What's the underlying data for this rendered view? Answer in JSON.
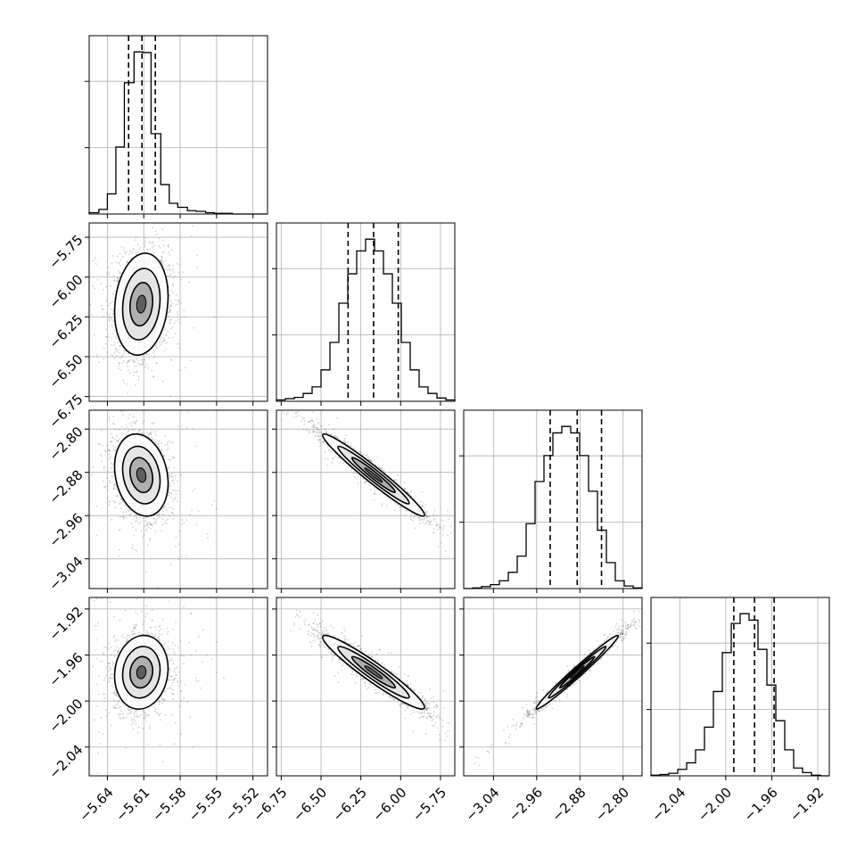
{
  "figure": {
    "background": "#ffffff",
    "line_color": "#000000",
    "grid_color": "#b0b0b0",
    "scatter_color": "#555555"
  },
  "chart_data": [
    {
      "type": "histogram",
      "panel": "1-1",
      "param": 0,
      "xlim": [
        -5.655,
        -5.508
      ],
      "bins": [
        -5.655,
        -5.647,
        -5.64,
        -5.633,
        -5.626,
        -5.618,
        -5.611,
        -5.604,
        -5.596,
        -5.589,
        -5.582,
        -5.574,
        -5.567,
        -5.559,
        -5.552,
        -5.545,
        -5.537,
        -5.53,
        -5.523,
        -5.515,
        -5.508
      ],
      "counts": [
        2,
        7,
        30,
        100,
        196,
        242,
        241,
        120,
        44,
        16,
        10,
        5,
        4,
        2,
        1,
        1,
        0,
        0,
        0,
        0
      ],
      "quantiles": [
        -5.6225,
        -5.6115,
        -5.6005
      ],
      "grid": true,
      "yticks_shown": false
    },
    {
      "type": "scatter_contour",
      "panel": "2-1",
      "x_param": 0,
      "y_param": 1,
      "xlim": [
        -5.655,
        -5.508
      ],
      "ylim": [
        -6.78,
        -5.66
      ],
      "yticks": [
        "−5.75",
        "−6.00",
        "−6.25",
        "−6.50",
        "−6.75"
      ],
      "ytick_values": [
        -5.75,
        -6.0,
        -6.25,
        -6.5,
        -6.75
      ],
      "center": [
        -5.612,
        -6.17
      ],
      "spread": [
        0.011,
        0.16
      ],
      "correlation": 0.15,
      "grid": true
    },
    {
      "type": "histogram",
      "panel": "2-2",
      "param": 1,
      "xlim": [
        -6.78,
        -5.66
      ],
      "bins": [
        -6.78,
        -6.724,
        -6.668,
        -6.612,
        -6.556,
        -6.5,
        -6.444,
        -6.388,
        -6.332,
        -6.276,
        -6.22,
        -6.164,
        -6.108,
        -6.052,
        -5.996,
        -5.94,
        -5.884,
        -5.828,
        -5.772,
        -5.716,
        -5.66
      ],
      "counts": [
        2,
        4,
        6,
        12,
        22,
        48,
        90,
        150,
        195,
        230,
        248,
        230,
        195,
        150,
        90,
        48,
        22,
        12,
        5,
        2
      ],
      "quantiles": [
        -6.33,
        -6.17,
        -6.015
      ],
      "grid": true,
      "yticks_shown": false
    },
    {
      "type": "scatter_contour",
      "panel": "3-1",
      "x_param": 0,
      "y_param": 2,
      "xlim": [
        -5.655,
        -5.508
      ],
      "ylim": [
        -3.095,
        -2.765
      ],
      "yticks": [
        "−2.80",
        "−2.88",
        "−2.96",
        "−3.04"
      ],
      "ytick_values": [
        -2.8,
        -2.88,
        -2.96,
        -3.04
      ],
      "center": [
        -5.612,
        -2.885
      ],
      "spread": [
        0.011,
        0.038
      ],
      "correlation": -0.2,
      "grid": true
    },
    {
      "type": "scatter_contour",
      "panel": "3-2",
      "x_param": 1,
      "y_param": 2,
      "xlim": [
        -6.78,
        -5.66
      ],
      "ylim": [
        -3.095,
        -2.765
      ],
      "center": [
        -6.17,
        -2.885
      ],
      "spread": [
        0.16,
        0.038
      ],
      "correlation": -0.97,
      "grid": true
    },
    {
      "type": "histogram",
      "panel": "3-3",
      "param": 2,
      "xlim": [
        -3.095,
        -2.765
      ],
      "bins": [
        -3.095,
        -3.0785,
        -3.062,
        -3.0455,
        -3.029,
        -3.0125,
        -2.996,
        -2.9795,
        -2.963,
        -2.9465,
        -2.93,
        -2.9135,
        -2.897,
        -2.8805,
        -2.864,
        -2.8475,
        -2.831,
        -2.8145,
        -2.798,
        -2.7815,
        -2.765
      ],
      "counts": [
        0,
        1,
        3,
        6,
        12,
        25,
        50,
        100,
        165,
        205,
        240,
        250,
        240,
        205,
        150,
        90,
        40,
        12,
        4,
        1
      ],
      "quantiles": [
        -2.935,
        -2.885,
        -2.84
      ],
      "grid": true,
      "yticks_shown": false
    },
    {
      "type": "scatter_contour",
      "panel": "4-1",
      "x_param": 0,
      "y_param": 3,
      "xlim": [
        -5.655,
        -5.508
      ],
      "ylim": [
        -2.065,
        -1.91
      ],
      "yticks": [
        "−1.92",
        "−1.96",
        "−2.00",
        "−2.04"
      ],
      "ytick_values": [
        -1.92,
        -1.96,
        -2.0,
        -2.04
      ],
      "center": [
        -5.612,
        -1.975
      ],
      "spread": [
        0.011,
        0.016
      ],
      "correlation": 0.1,
      "grid": true
    },
    {
      "type": "scatter_contour",
      "panel": "4-2",
      "x_param": 1,
      "y_param": 3,
      "xlim": [
        -6.78,
        -5.66
      ],
      "ylim": [
        -2.065,
        -1.91
      ],
      "center": [
        -6.17,
        -1.975
      ],
      "spread": [
        0.16,
        0.016
      ],
      "correlation": -0.95,
      "grid": true
    },
    {
      "type": "scatter_contour",
      "panel": "4-3",
      "x_param": 2,
      "y_param": 3,
      "xlim": [
        -3.095,
        -2.765
      ],
      "ylim": [
        -2.065,
        -1.91
      ],
      "center": [
        -2.885,
        -1.975
      ],
      "spread": [
        0.038,
        0.016
      ],
      "correlation": 0.985,
      "grid": true
    },
    {
      "type": "histogram",
      "panel": "4-4",
      "param": 3,
      "xlim": [
        -2.065,
        -1.91
      ],
      "bins": [
        -2.065,
        -2.05725,
        -2.0495,
        -2.04175,
        -2.034,
        -2.02625,
        -2.0185,
        -2.01075,
        -2.003,
        -1.99525,
        -1.9875,
        -1.97975,
        -1.972,
        -1.96425,
        -1.9565,
        -1.94875,
        -1.941,
        -1.93325,
        -1.9255,
        -1.91775,
        -1.91
      ],
      "counts": [
        1,
        2,
        4,
        10,
        20,
        40,
        75,
        130,
        190,
        235,
        250,
        240,
        195,
        140,
        85,
        40,
        12,
        5,
        1,
        0
      ],
      "quantiles": [
        -1.993,
        -1.975,
        -1.958
      ],
      "grid": true,
      "yticks_shown": false
    }
  ],
  "x_axis_ticks": [
    {
      "column": 0,
      "labels": [
        "−5.64",
        "−5.61",
        "−5.58",
        "−5.55",
        "−5.52"
      ],
      "values": [
        -5.64,
        -5.61,
        -5.58,
        -5.55,
        -5.52
      ]
    },
    {
      "column": 1,
      "labels": [
        "−6.75",
        "−6.50",
        "−6.25",
        "−6.00",
        "−5.75"
      ],
      "values": [
        -6.75,
        -6.5,
        -6.25,
        -6.0,
        -5.75
      ]
    },
    {
      "column": 2,
      "labels": [
        "−3.04",
        "−2.96",
        "−2.88",
        "−2.80"
      ],
      "values": [
        -3.04,
        -2.96,
        -2.88,
        -2.8
      ]
    },
    {
      "column": 3,
      "labels": [
        "−2.04",
        "−2.00",
        "−1.96",
        "−1.92"
      ],
      "values": [
        -2.04,
        -2.0,
        -1.96,
        -1.92
      ]
    }
  ]
}
